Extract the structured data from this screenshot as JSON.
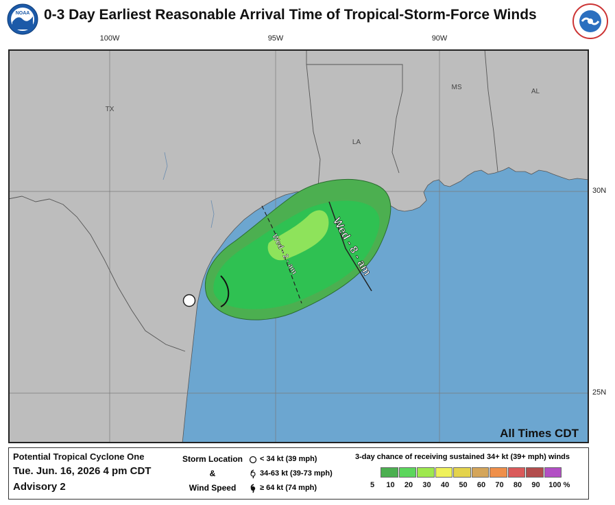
{
  "title": "0-3 Day Earliest Reasonable Arrival Time of Tropical-Storm-Force Winds",
  "logos": {
    "left": "noaa-logo",
    "right": "nws-logo"
  },
  "graticule": {
    "longitudes": [
      "100W",
      "95W",
      "90W"
    ],
    "latitudes": [
      "30N",
      "25N"
    ]
  },
  "map_labels": {
    "tx": "TX",
    "la": "LA",
    "ms": "MS",
    "al": "AL"
  },
  "arrival_labels": {
    "wed_2am": "Wed - 2 - am",
    "wed_8am": "Wed - 8 - am"
  },
  "times_note": "All Times CDT",
  "legend": {
    "storm_name": "Potential Tropical Cyclone One",
    "datetime": "Tue. Jun. 16, 2026  4 pm CDT",
    "advisory": "Advisory 2",
    "storm_location_label": "Storm Location",
    "amp": "&",
    "wind_speed_label": "Wind Speed",
    "storm_items": [
      {
        "icon": "circle-icon",
        "label": "< 34 kt (39 mph)"
      },
      {
        "icon": "tropical-storm-icon",
        "label": "34-63 kt (39-73 mph)"
      },
      {
        "icon": "hurricane-icon",
        "label": "≥ 64 kt (74 mph)"
      }
    ],
    "prob_title": "3-day chance of receiving sustained 34+ kt (39+ mph) winds",
    "prob_colors": [
      "#4CAF50",
      "#5CD65C",
      "#9EE84F",
      "#EFF15A",
      "#E4D34C",
      "#D4A55A",
      "#EF8F4A",
      "#DA5A5A",
      "#B24D4D",
      "#B24FC4"
    ],
    "prob_labels": [
      "5",
      "10",
      "20",
      "30",
      "40",
      "50",
      "60",
      "70",
      "80",
      "90",
      "100 %"
    ]
  },
  "colors": {
    "land": "#BDBDBD",
    "water": "#6CA6D0",
    "prob_5_10": "#4CAF50",
    "prob_10_20": "#2FC152",
    "prob_20_30": "#8EE35B",
    "border": "#444444"
  }
}
